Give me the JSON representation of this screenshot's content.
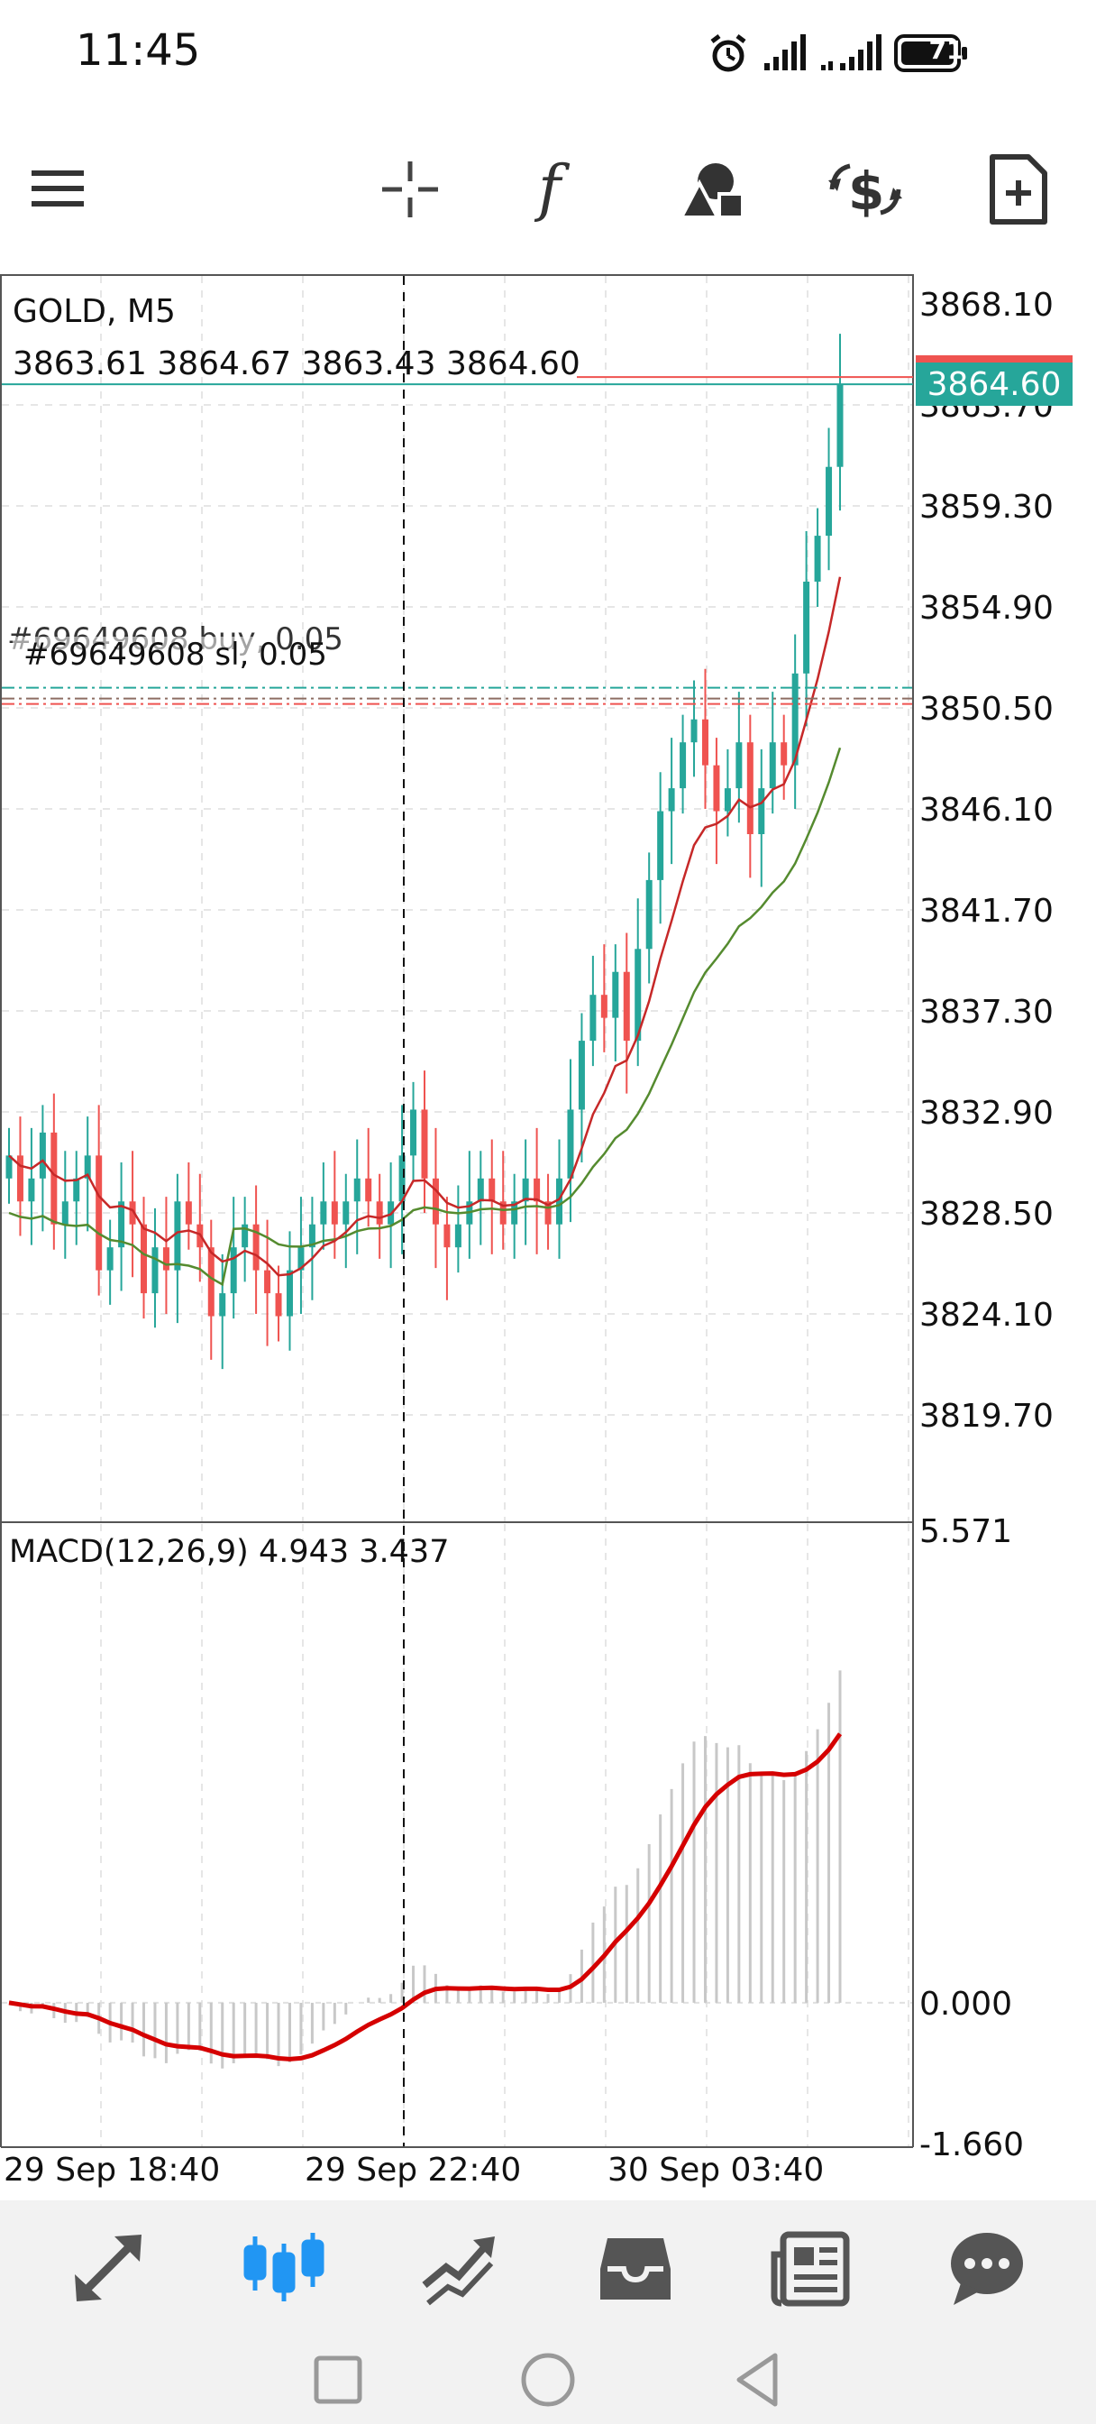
{
  "status_bar": {
    "time": "11:45",
    "battery": "71"
  },
  "toolbar": {
    "items": [
      {
        "name": "menu-icon"
      },
      {
        "name": "crosshair-icon"
      },
      {
        "name": "indicator-function-icon"
      },
      {
        "name": "objects-shapes-icon"
      },
      {
        "name": "trade-dollar-icon"
      },
      {
        "name": "new-order-document-icon"
      }
    ]
  },
  "chart": {
    "symbol": "GOLD, M5",
    "ohlc": "3863.61 3864.67 3863.43 3864.60",
    "current_price": "3864.60",
    "order_label_top": "#69649608 buy, 0.05",
    "order_label_bottom": "#69649608 sl, 0.05",
    "price_ticks": [
      "3868.10",
      "3863.70",
      "3859.30",
      "3854.90",
      "3850.50",
      "3846.10",
      "3841.70",
      "3837.30",
      "3832.90",
      "3828.50",
      "3824.10",
      "3819.70"
    ],
    "macd_label": "MACD(12,26,9) 4.943 3.437",
    "macd_ticks": [
      "5.571",
      "0.000",
      "-1.660"
    ],
    "time_labels": [
      "29 Sep 18:40",
      "29 Sep 22:40",
      "30 Sep 03:40"
    ],
    "colors": {
      "bull": "#26a69a",
      "bear": "#ef5350",
      "ma_fast": "#c62828",
      "ma_slow": "#558b2f",
      "macd_signal": "#d50000",
      "histogram": "#c8c8c8"
    }
  },
  "chart_data": {
    "type": "candlestick",
    "symbol": "GOLD",
    "timeframe": "M5",
    "last_price": 3864.6,
    "price_range": [
      3816.5,
      3869.5
    ],
    "order_level_price": 3851.3,
    "candles_close_approx": [
      3831,
      3829,
      3830,
      3832,
      3828,
      3829,
      3830,
      3831,
      3826,
      3827,
      3829,
      3828,
      3825,
      3827,
      3826,
      3829,
      3828,
      3827,
      3824,
      3825,
      3827,
      3828,
      3826,
      3825,
      3824,
      3826,
      3827,
      3828,
      3829,
      3828,
      3829,
      3830,
      3829,
      3828,
      3829,
      3831,
      3833,
      3830,
      3828,
      3827,
      3828,
      3829,
      3830,
      3829,
      3828,
      3829,
      3830,
      3829,
      3828,
      3830,
      3833,
      3836,
      3838,
      3837,
      3839,
      3836,
      3840,
      3843,
      3846,
      3847,
      3849,
      3850,
      3848,
      3846,
      3847,
      3849,
      3845,
      3847,
      3849,
      3848,
      3852,
      3856,
      3858,
      3861,
      3864.6
    ],
    "macd": {
      "range": [
        -1.66,
        5.571
      ],
      "current_macd": 4.943,
      "current_signal": 3.437
    }
  },
  "bottom_nav": {
    "items": [
      {
        "name": "quotes-icon"
      },
      {
        "name": "chart-icon"
      },
      {
        "name": "trade-icon"
      },
      {
        "name": "history-icon"
      },
      {
        "name": "news-icon"
      },
      {
        "name": "chat-icon"
      }
    ]
  }
}
